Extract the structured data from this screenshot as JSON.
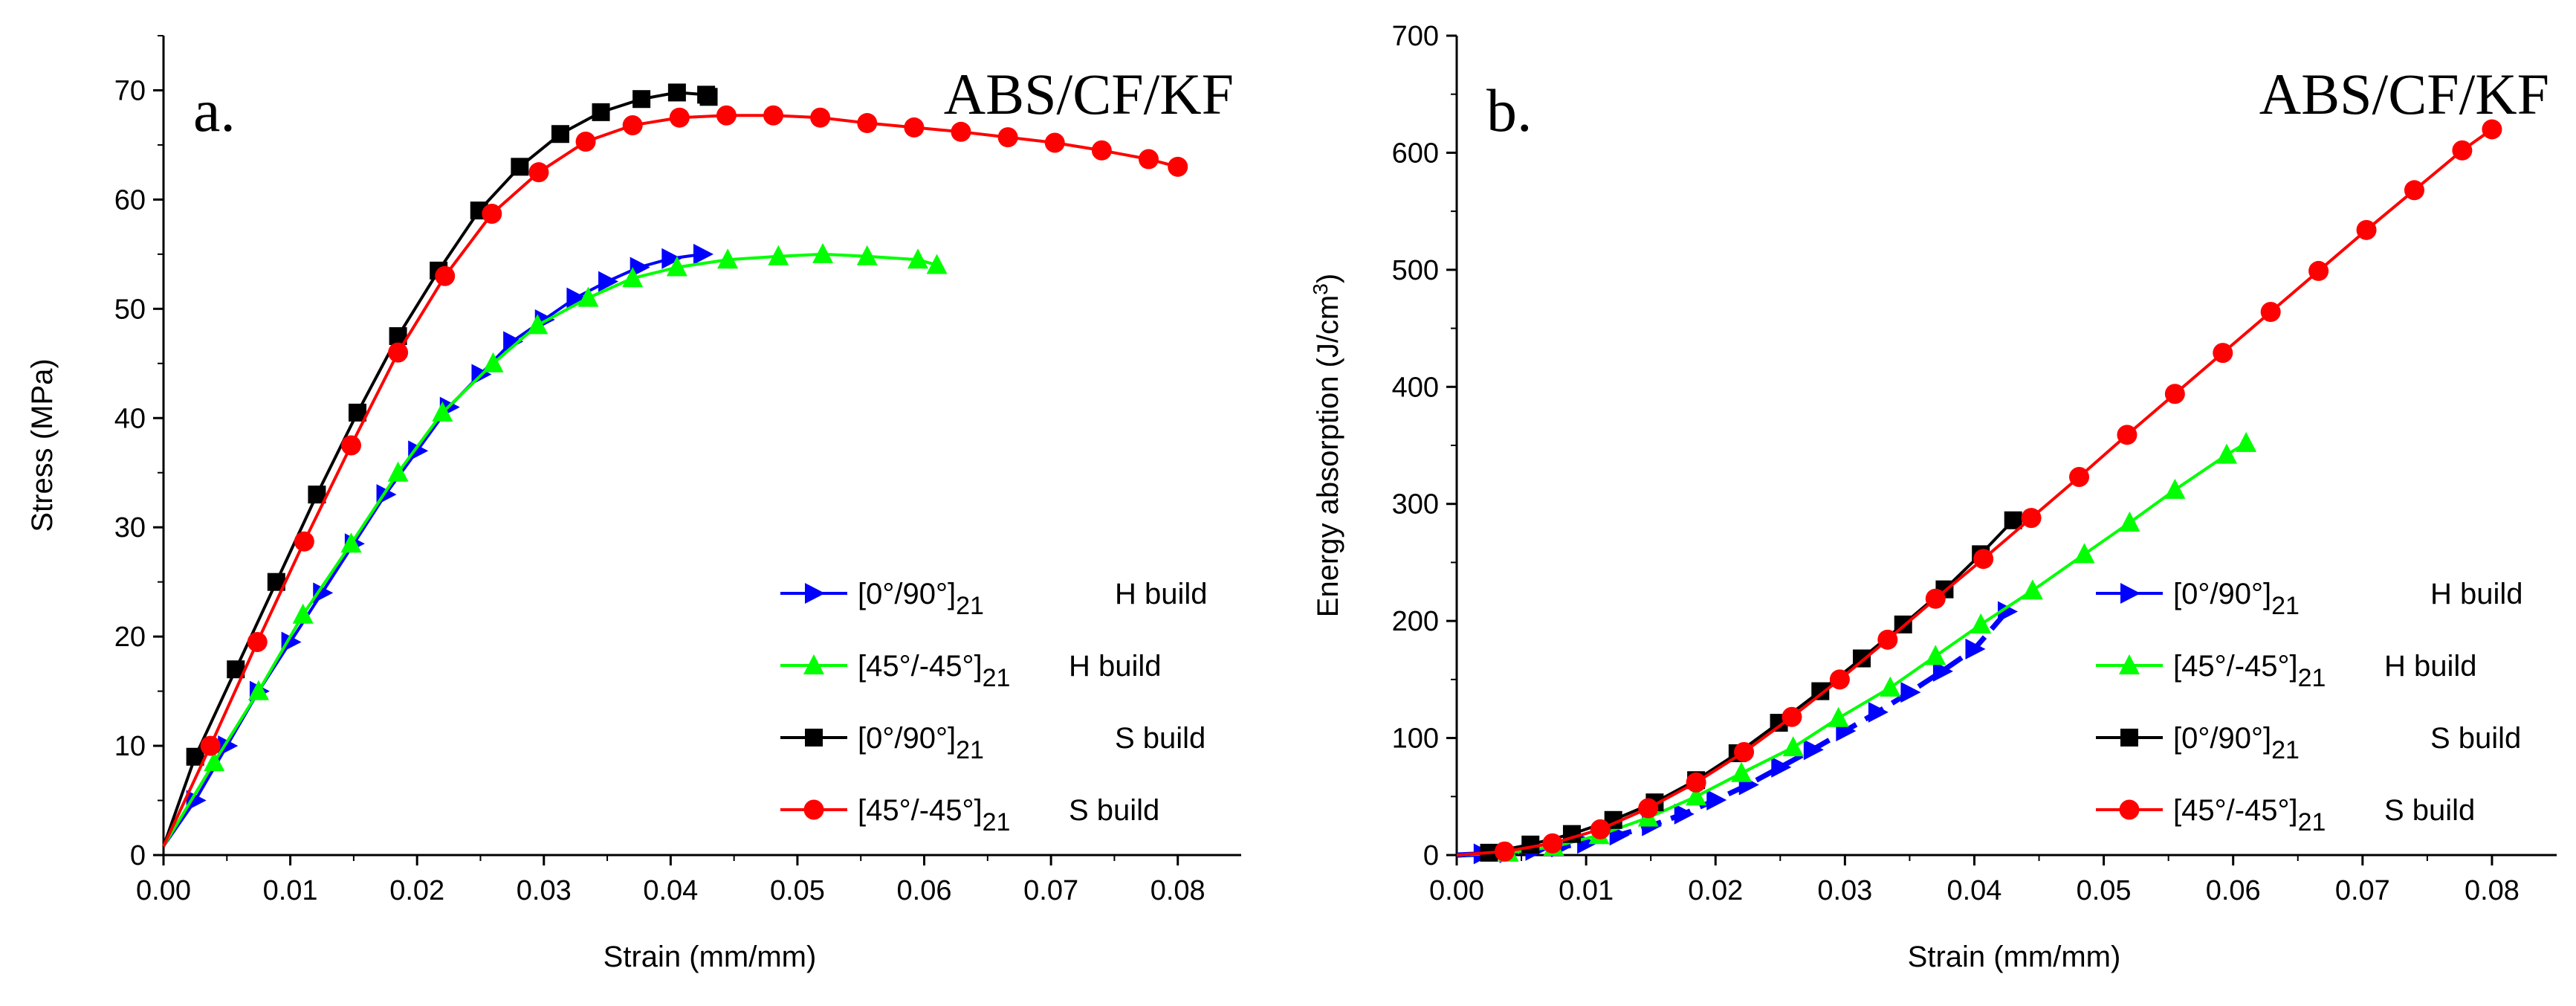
{
  "chart_data": [
    {
      "panel_label": "a.",
      "title": "ABS/CF/KF",
      "type": "line",
      "xlabel": "Strain (mm/mm)",
      "ylabel": "Stress (MPa)",
      "xlim": [
        0,
        0.085
      ],
      "ylim": [
        0,
        75
      ],
      "xticks": [
        0.0,
        0.01,
        0.02,
        0.03,
        0.04,
        0.05,
        0.06,
        0.07,
        0.08
      ],
      "xtick_labels": [
        "0.00",
        "0.01",
        "0.02",
        "0.03",
        "0.04",
        "0.05",
        "0.06",
        "0.07",
        "0.08"
      ],
      "yticks": [
        0,
        10,
        20,
        30,
        40,
        50,
        60,
        70
      ],
      "ytick_labels": [
        "0",
        "10",
        "20",
        "30",
        "40",
        "50",
        "60",
        "70"
      ],
      "legend_position": "bottom-right",
      "series": [
        {
          "name": "[0°/90°]",
          "subscript": "21",
          "build": "H build",
          "color": "#0000ff",
          "marker": "triangle-right",
          "x": [
            0,
            0.0025,
            0.005,
            0.0075,
            0.01,
            0.0125,
            0.015,
            0.0175,
            0.02,
            0.0225,
            0.025,
            0.0275,
            0.03,
            0.0325,
            0.035,
            0.0375,
            0.04,
            0.0425
          ],
          "y": [
            0.8,
            5,
            10,
            15,
            19.5,
            24,
            28.5,
            33,
            37,
            41,
            44,
            47,
            49,
            51,
            52.5,
            53.8,
            54.6,
            55
          ]
        },
        {
          "name": "[45°/-45°]",
          "subscript": "21",
          "build": "H build",
          "color": "#00ff00",
          "marker": "triangle-up",
          "x": [
            0,
            0.004,
            0.0075,
            0.011,
            0.0148,
            0.0185,
            0.022,
            0.026,
            0.0295,
            0.0335,
            0.037,
            0.0405,
            0.0445,
            0.0485,
            0.052,
            0.0555,
            0.0595,
            0.061
          ],
          "y": [
            0.8,
            8.5,
            15,
            22,
            28.5,
            35,
            40.5,
            45,
            48.5,
            51,
            52.8,
            53.8,
            54.5,
            54.8,
            55,
            54.8,
            54.5,
            54
          ]
        },
        {
          "name": "[0°/90°]",
          "subscript": "21",
          "build": "S build",
          "color": "#000000",
          "marker": "square",
          "x": [
            0,
            0.0025,
            0.0057,
            0.0089,
            0.0121,
            0.0153,
            0.0185,
            0.0217,
            0.0249,
            0.0281,
            0.0313,
            0.0345,
            0.0377,
            0.0405,
            0.0428,
            0.043
          ],
          "y": [
            0.8,
            9,
            17,
            25,
            33,
            40.5,
            47.5,
            53.5,
            59,
            63,
            66,
            68,
            69.2,
            69.8,
            69.6,
            69.4
          ]
        },
        {
          "name": "[45°/-45°]",
          "subscript": "21",
          "build": "S build",
          "color": "#ff0000",
          "marker": "circle",
          "x": [
            0,
            0.0037,
            0.0074,
            0.0111,
            0.0148,
            0.0185,
            0.0222,
            0.0259,
            0.0296,
            0.0333,
            0.037,
            0.0407,
            0.0444,
            0.0481,
            0.0518,
            0.0555,
            0.0592,
            0.0629,
            0.0666,
            0.0703,
            0.074,
            0.0777,
            0.08
          ],
          "y": [
            0.8,
            10,
            19.5,
            28.7,
            37.5,
            46,
            53,
            58.7,
            62.5,
            65.3,
            66.8,
            67.5,
            67.7,
            67.7,
            67.5,
            67,
            66.6,
            66.2,
            65.7,
            65.2,
            64.5,
            63.7,
            63
          ]
        }
      ]
    },
    {
      "panel_label": "b.",
      "title": "ABS/CF/KF",
      "type": "line",
      "xlabel": "Strain (mm/mm)",
      "ylabel": "Energy absorption (J/cm",
      "ylabel_superscript": "3",
      "ylabel_suffix": ")",
      "xlim": [
        0,
        0.085
      ],
      "ylim": [
        0,
        700
      ],
      "xticks": [
        0.0,
        0.01,
        0.02,
        0.03,
        0.04,
        0.05,
        0.06,
        0.07,
        0.08
      ],
      "xtick_labels": [
        "0.00",
        "0.01",
        "0.02",
        "0.03",
        "0.04",
        "0.05",
        "0.06",
        "0.07",
        "0.08"
      ],
      "yticks": [
        0,
        100,
        200,
        300,
        400,
        500,
        600,
        700
      ],
      "ytick_labels": [
        "0",
        "100",
        "200",
        "300",
        "400",
        "500",
        "600",
        "700"
      ],
      "legend_position": "bottom-right",
      "series": [
        {
          "name": "[0°/90°]",
          "subscript": "21",
          "build": "H build",
          "color": "#0000ff",
          "marker": "triangle-right",
          "dashed": true,
          "x": [
            0,
            0.002,
            0.004,
            0.006,
            0.008,
            0.01,
            0.0125,
            0.015,
            0.0175,
            0.02,
            0.0225,
            0.025,
            0.0275,
            0.03,
            0.0325,
            0.035,
            0.0375,
            0.04,
            0.0425
          ],
          "y": [
            0,
            1,
            2,
            4,
            7,
            10,
            17,
            25,
            35,
            47,
            60,
            75,
            90,
            106,
            122,
            139,
            157,
            176,
            208
          ]
        },
        {
          "name": "[45°/-45°]",
          "subscript": "21",
          "build": "H build",
          "color": "#00ff00",
          "marker": "triangle-up",
          "x": [
            0,
            0.004,
            0.0075,
            0.011,
            0.0148,
            0.0185,
            0.022,
            0.026,
            0.0295,
            0.0335,
            0.037,
            0.0405,
            0.0445,
            0.0485,
            0.052,
            0.0555,
            0.0595,
            0.061
          ],
          "y": [
            0,
            2,
            7,
            17,
            32,
            50,
            70,
            92,
            117,
            143,
            170,
            197,
            226,
            257,
            284,
            312,
            342,
            352
          ]
        },
        {
          "name": "[0°/90°]",
          "subscript": "21",
          "build": "S build",
          "color": "#000000",
          "marker": "square",
          "x": [
            0,
            0.0025,
            0.0057,
            0.0089,
            0.0121,
            0.0153,
            0.0185,
            0.0217,
            0.0249,
            0.0281,
            0.0313,
            0.0345,
            0.0377,
            0.0405,
            0.043
          ],
          "y": [
            0,
            2,
            9,
            18,
            30,
            45,
            64,
            87,
            113,
            140,
            168,
            197,
            227,
            257,
            286
          ]
        },
        {
          "name": "[45°/-45°]",
          "subscript": "21",
          "build": "S build",
          "color": "#ff0000",
          "marker": "circle",
          "x": [
            0,
            0.0037,
            0.0074,
            0.0111,
            0.0148,
            0.0185,
            0.0222,
            0.0259,
            0.0296,
            0.0333,
            0.037,
            0.0407,
            0.0444,
            0.0481,
            0.0518,
            0.0555,
            0.0592,
            0.0629,
            0.0666,
            0.0703,
            0.074,
            0.0777,
            0.08
          ],
          "y": [
            0,
            3,
            10,
            22,
            40,
            62,
            88,
            118,
            150,
            184,
            219,
            253,
            288,
            323,
            359,
            394,
            429,
            464,
            499,
            534,
            568,
            602,
            620
          ]
        }
      ]
    }
  ]
}
